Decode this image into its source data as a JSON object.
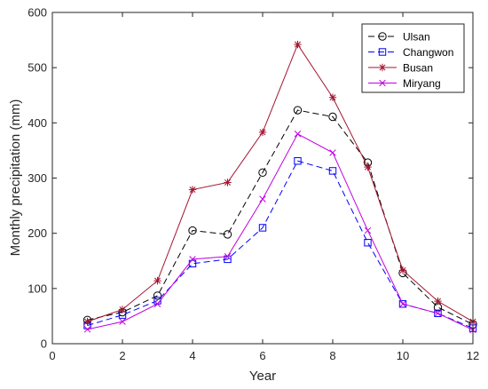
{
  "chart_data": {
    "type": "line",
    "title": "",
    "xlabel": "Year",
    "ylabel": "Monthly precipitation (mm)",
    "xlim": [
      0,
      12
    ],
    "ylim": [
      0,
      600
    ],
    "xticks": [
      0,
      2,
      4,
      6,
      8,
      10,
      12
    ],
    "yticks": [
      0,
      100,
      200,
      300,
      400,
      500,
      600
    ],
    "grid": false,
    "legend_position": "top-right",
    "x": [
      1,
      2,
      3,
      4,
      5,
      6,
      7,
      8,
      9,
      10,
      11,
      12
    ],
    "series": [
      {
        "name": "Ulsan",
        "color": "#000000",
        "line_style": "dashed",
        "marker": "circle",
        "values": [
          43,
          57,
          87,
          205,
          198,
          310,
          423,
          411,
          328,
          128,
          66,
          35
        ]
      },
      {
        "name": "Changwon",
        "color": "#0000ff",
        "line_style": "dashed",
        "marker": "square",
        "values": [
          33,
          52,
          78,
          145,
          153,
          210,
          331,
          313,
          183,
          72,
          55,
          28
        ]
      },
      {
        "name": "Busan",
        "color": "#a2142f",
        "line_style": "solid",
        "marker": "asterisk",
        "values": [
          40,
          62,
          114,
          279,
          292,
          383,
          542,
          446,
          320,
          133,
          77,
          40
        ]
      },
      {
        "name": "Miryang",
        "color": "#c000e0",
        "line_style": "solid",
        "marker": "x",
        "values": [
          26,
          40,
          72,
          153,
          158,
          262,
          380,
          346,
          205,
          72,
          55,
          25
        ]
      }
    ]
  }
}
